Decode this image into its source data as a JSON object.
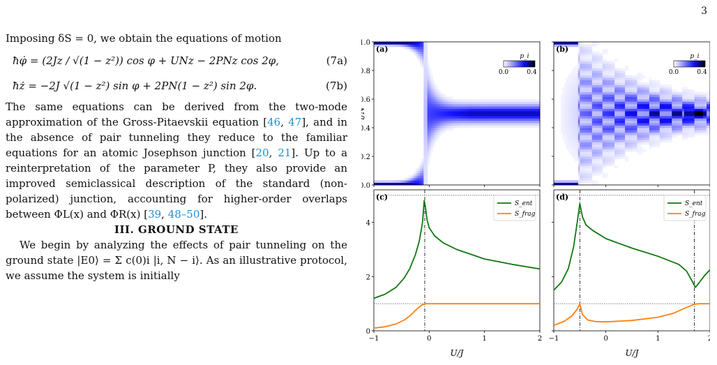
{
  "page": {
    "number": "3"
  },
  "text": {
    "intro": "Imposing δS = 0, we obtain the equations of motion",
    "eq_a": "ħφ̇ = (2Jz / √(1 − z²)) cos φ + UNz − 2PNz cos 2φ,",
    "eq_a_num": "(7a)",
    "eq_b": "ħż = −2J √(1 − z²) sin φ + 2PN(1 − z²) sin 2φ.",
    "eq_b_num": "(7b)",
    "para1_a": "The same equations can be derived from the two-mode approximation of the Gross-Pitaevskii equation [",
    "cite_46": "46",
    "para1_sep1": ", ",
    "cite_47": "47",
    "para1_b": "], and in the absence of pair tunneling they reduce to the familiar equations for an atomic Josephson junction [",
    "cite_20": "20",
    "para1_sep2": ", ",
    "cite_21": "21",
    "para1_c": "]. Up to a reinterpretation of the parameter P, they also provide an improved semiclassical description of the standard (non-polarized) junction, accounting for higher-order overlaps between ΦL(x) and ΦR(x) [",
    "cite_39": "39",
    "para1_sep3": ", ",
    "cite_48": "48–50",
    "para1_d": "].",
    "section_heading": "III.   GROUND STATE",
    "para2": "We begin by analyzing the effects of pair tunneling on the ground state |E0⟩ = Σ c(0)i |i, N − i⟩. As an illustrative protocol, we assume the system is initially"
  },
  "figure": {
    "panel_labels": [
      "(a)",
      "(b)",
      "(c)",
      "(d)"
    ],
    "colorbar": {
      "label": "p_i",
      "min_label": "0.0",
      "max_label": "0.4",
      "colors": [
        "#ffffff",
        "#1010ff",
        "#000000"
      ]
    },
    "colors": {
      "entropy": "#117711",
      "frag": "#ff8010",
      "heat": "#1c1cff"
    },
    "legend": {
      "s_ent": "S_ent",
      "s_frag": "S_frag"
    },
    "top_ylabel": "i/N",
    "top_yticks": [
      "0.0",
      "0.2",
      "0.4",
      "0.6",
      "0.8",
      "1.0"
    ],
    "bottom_yticks": [
      "0",
      "2",
      "4"
    ],
    "xticks": [
      "−1",
      "0",
      "1",
      "2"
    ],
    "xlabel": "U/J"
  },
  "chart_data": [
    {
      "panel": "(a)",
      "type": "heatmap",
      "x_range": [
        -1,
        2
      ],
      "y_range": [
        0,
        1
      ],
      "ylabel": "i/N",
      "transition_U": -0.08,
      "description_values": {
        "left_regime_weight_edges": [
          0.0,
          1.0
        ],
        "right_regime_center": 0.5,
        "right_regime_halfwidth": 0.06
      }
    },
    {
      "panel": "(b)",
      "type": "heatmap",
      "x_range": [
        -1,
        2
      ],
      "y_range": [
        0,
        1
      ],
      "transition_U": -0.5,
      "right_regime_center": 0.5
    },
    {
      "panel": "(c)",
      "type": "line",
      "x_range": [
        -1,
        2
      ],
      "y_range": [
        0,
        5.2
      ],
      "xlabel": "U/J",
      "xticks": [
        -1,
        0,
        1,
        2
      ],
      "yticks": [
        0,
        2,
        4
      ],
      "vlines": [
        -0.08
      ],
      "hlines": [
        1.0,
        5.0
      ],
      "series": [
        {
          "name": "S_ent",
          "color": "#117711",
          "x": [
            -1.0,
            -0.8,
            -0.6,
            -0.45,
            -0.35,
            -0.25,
            -0.18,
            -0.12,
            -0.09,
            -0.07,
            -0.04,
            0.0,
            0.1,
            0.25,
            0.5,
            1.0,
            1.5,
            2.0
          ],
          "y": [
            1.2,
            1.35,
            1.6,
            1.95,
            2.3,
            2.8,
            3.3,
            4.0,
            4.8,
            4.6,
            4.1,
            3.8,
            3.5,
            3.25,
            3.0,
            2.65,
            2.45,
            2.28
          ]
        },
        {
          "name": "S_frag",
          "color": "#ff8010",
          "x": [
            -1.0,
            -0.8,
            -0.6,
            -0.45,
            -0.35,
            -0.25,
            -0.15,
            -0.08,
            0.0,
            0.5,
            1.0,
            1.5,
            2.0
          ],
          "y": [
            0.1,
            0.15,
            0.25,
            0.4,
            0.55,
            0.75,
            0.93,
            1.0,
            1.0,
            1.0,
            1.0,
            1.0,
            1.0
          ]
        }
      ]
    },
    {
      "panel": "(d)",
      "type": "line",
      "x_range": [
        -1,
        2
      ],
      "y_range": [
        0,
        5.2
      ],
      "xlabel": "U/J",
      "xticks": [
        -1,
        0,
        1,
        2
      ],
      "yticks": [
        0,
        2,
        4
      ],
      "vlines": [
        -0.5,
        1.7
      ],
      "hlines": [
        1.0,
        5.0
      ],
      "series": [
        {
          "name": "S_ent",
          "color": "#117711",
          "x": [
            -1.0,
            -0.85,
            -0.72,
            -0.62,
            -0.55,
            -0.5,
            -0.45,
            -0.38,
            -0.25,
            0.0,
            0.5,
            1.0,
            1.4,
            1.55,
            1.65,
            1.72,
            1.8,
            1.9,
            2.0
          ],
          "y": [
            1.5,
            1.8,
            2.3,
            3.1,
            4.0,
            4.7,
            4.2,
            3.9,
            3.7,
            3.4,
            3.05,
            2.75,
            2.45,
            2.2,
            1.85,
            1.6,
            1.8,
            2.05,
            2.25
          ]
        },
        {
          "name": "S_frag",
          "color": "#ff8010",
          "x": [
            -1.0,
            -0.8,
            -0.65,
            -0.55,
            -0.5,
            -0.45,
            -0.35,
            -0.2,
            0.0,
            0.5,
            1.0,
            1.3,
            1.5,
            1.7,
            1.8,
            2.0
          ],
          "y": [
            0.2,
            0.35,
            0.55,
            0.8,
            1.0,
            0.6,
            0.4,
            0.34,
            0.33,
            0.38,
            0.5,
            0.65,
            0.82,
            0.98,
            1.0,
            1.0
          ]
        }
      ]
    }
  ]
}
